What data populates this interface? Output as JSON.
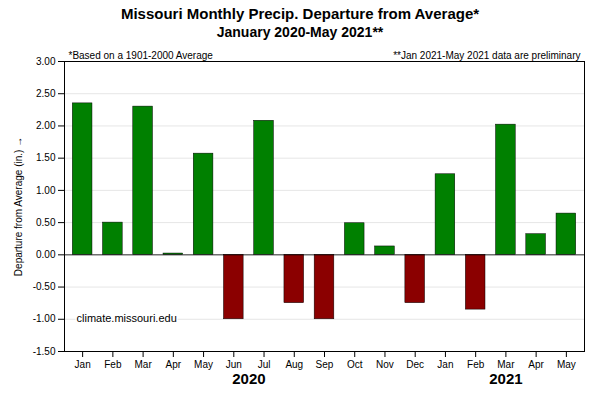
{
  "chart_data": {
    "type": "bar",
    "title": "Missouri Monthly Precip. Departure from Average*",
    "subtitle": "January 2020-May 2021**",
    "ylabel": "Departure from Average (in.)",
    "categories": [
      "Jan",
      "Feb",
      "Mar",
      "Apr",
      "May",
      "Jun",
      "Jul",
      "Aug",
      "Sep",
      "Oct",
      "Nov",
      "Dec",
      "Jan",
      "Feb",
      "Mar",
      "Apr",
      "May"
    ],
    "values": [
      2.35,
      0.5,
      2.3,
      0.02,
      1.57,
      -1.0,
      2.08,
      -0.75,
      -1.0,
      0.49,
      0.13,
      -0.75,
      1.25,
      -0.85,
      2.02,
      0.32,
      0.64
    ],
    "colors": [
      "#008000",
      "#008000",
      "#008000",
      "#008000",
      "#008000",
      "#8B0000",
      "#008000",
      "#8B0000",
      "#8B0000",
      "#008000",
      "#008000",
      "#8B0000",
      "#008000",
      "#8B0000",
      "#008000",
      "#008000",
      "#008000"
    ],
    "ylim": [
      -1.5,
      3.0
    ],
    "yticks": [
      {
        "value": -1.5,
        "label": "-1.50"
      },
      {
        "value": -1.0,
        "label": "-1.00"
      },
      {
        "value": -0.5,
        "label": "-0.50"
      },
      {
        "value": 0.0,
        "label": "0.00"
      },
      {
        "value": 0.5,
        "label": "0.50"
      },
      {
        "value": 1.0,
        "label": "1.00"
      },
      {
        "value": 1.5,
        "label": "1.50"
      },
      {
        "value": 2.0,
        "label": "2.00"
      },
      {
        "value": 2.5,
        "label": "2.50"
      },
      {
        "value": 3.0,
        "label": "3.00"
      }
    ],
    "grid": true,
    "groups": [
      {
        "label": "2020",
        "first": 0,
        "last": 11
      },
      {
        "label": "2021",
        "first": 12,
        "last": 16
      }
    ],
    "annotations": [
      "*Based on a 1901-2000 Average",
      "**Jan 2021-May 2021 data are preliminary",
      "climate.missouri.edu"
    ]
  }
}
